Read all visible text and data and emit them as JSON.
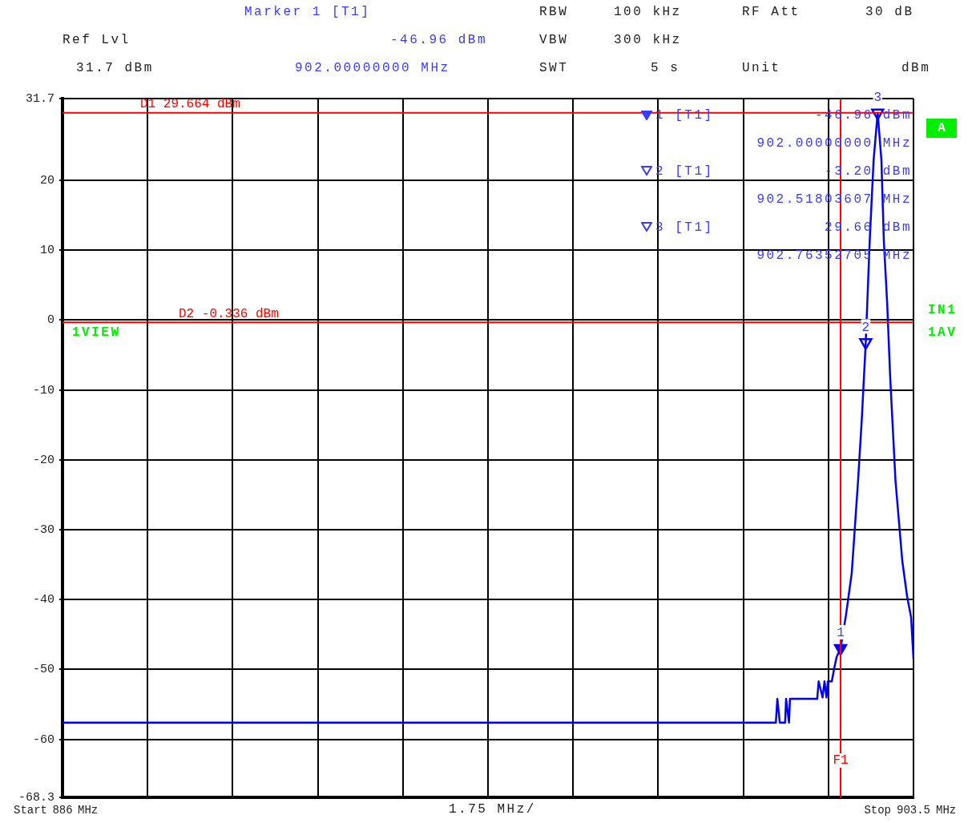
{
  "chart_data": {
    "type": "line",
    "xlim": [
      886,
      903.5
    ],
    "xticks": [
      886,
      {
        "value": 887.75,
        "label": null
      },
      {
        "value": 889.5,
        "label": null
      },
      {
        "value": 891.25,
        "label": null
      },
      {
        "value": 893,
        "label": null
      },
      {
        "value": 894.75,
        "label": null
      },
      {
        "value": 896.5,
        "label": null
      },
      {
        "value": 898.25,
        "label": null
      },
      {
        "value": 900,
        "label": null
      },
      {
        "value": 901.75,
        "label": null
      },
      903.5
    ],
    "ylim": [
      -68.3,
      31.7
    ],
    "yticks": [
      31.7,
      20,
      10,
      0,
      -10,
      -20,
      -30,
      -40,
      -50,
      -60,
      -68.3
    ],
    "grid": true,
    "legend": false,
    "series": [
      {
        "type": "line",
        "color": "#0000ff",
        "marker": "none",
        "line_style": "solid",
        "x": [
          886,
          900.67,
          900.7,
          900.75,
          900.86,
          900.88,
          900.94,
          900.96,
          901.52,
          901.55,
          901.63,
          901.67,
          901.71,
          901.74,
          901.82,
          901.87,
          901.92,
          902,
          902.11,
          902.23,
          902.36,
          902.44,
          902.518,
          902.6,
          902.68,
          902.7635,
          902.84,
          902.89,
          902.96,
          903.02,
          903.13,
          903.27,
          903.37,
          903.45,
          903.5
        ],
        "values": [
          -57.6,
          -57.6,
          -54.2,
          -57.6,
          -57.6,
          -54.2,
          -57.6,
          -54.2,
          -54.2,
          -51.7,
          -54,
          -51.7,
          -54,
          -51.7,
          -51.7,
          -49.8,
          -48.2,
          -46.96,
          -42.3,
          -36.2,
          -23,
          -13.8,
          -3.2,
          11.4,
          22.9,
          29.66,
          22.9,
          11.4,
          2.2,
          -8.1,
          -23,
          -34.5,
          -39.6,
          -42.5,
          -48.5
        ]
      },
      {
        "type": "scatter",
        "color": "#0000ff",
        "marker": "triangle",
        "x": [
          902,
          902.518,
          902.7635
        ],
        "values": [
          -46.96,
          -3.2,
          29.66
        ]
      }
    ],
    "ref_lines": [
      {
        "axis": "y",
        "value": 29.664,
        "label": "D1 29.664 dBm",
        "color": "#ff0000"
      },
      {
        "axis": "y",
        "value": -0.336,
        "label": "D2 -0.336 dBm",
        "color": "#ff0000"
      },
      {
        "axis": "x",
        "value": 902,
        "label": "F1",
        "color": "#ff0000"
      }
    ],
    "annotations": [
      "Marker 1 [T1]",
      "Ref Lvl",
      "-46.96 dBm",
      "31.7 dBm",
      "902.00000000 MHz",
      "RBW",
      "100 kHz",
      "RF Att",
      "30 dB",
      "VBW",
      "300 kHz",
      "SWT",
      "5 s",
      "Unit",
      "dBm",
      "1 [T1]",
      "-46.96 dBm",
      "902.00000000 MHz",
      "2 [T1]",
      "-3.20 dBm",
      "902.51803607 MHz",
      "3 [T1]",
      "29.66 dBm",
      "902.76352705 MHz",
      "A",
      "IN1",
      "1AV",
      "1VIEW",
      "1.75 MHz/",
      "Start",
      "MHz",
      "Stop",
      "MHz",
      {
        "text": "1",
        "x": 902,
        "y": -46.96
      },
      {
        "text": "2",
        "x": 902.518,
        "y": -3.2
      },
      {
        "text": "3",
        "x": 902.7635,
        "y": 29.66
      }
    ]
  }
}
